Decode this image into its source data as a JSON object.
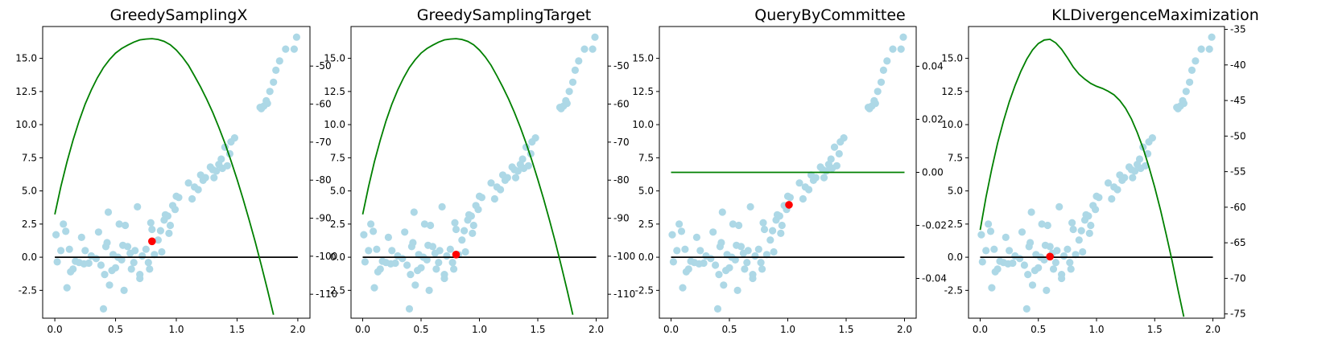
{
  "chart_data": [
    {
      "type": "scatter",
      "title": "GreedySamplingX",
      "xlim": [
        -0.1,
        2.1
      ],
      "ylim": [
        -4.6,
        17.4
      ],
      "xticks": [
        "0.0",
        "0.5",
        "1.0",
        "1.5",
        "2.0"
      ],
      "yticks_left": [
        "-2.5",
        "0.0",
        "2.5",
        "5.0",
        "7.5",
        "10.0",
        "12.5",
        "15.0"
      ],
      "y2lim": [
        -116.3,
        -39.6
      ],
      "yticks_right": [
        "-110",
        "-100",
        "-90",
        "-80",
        "-70",
        "-60",
        "-50"
      ],
      "selected_point": [
        0.8,
        1.2
      ],
      "green_curve": [
        [
          0.0,
          -89
        ],
        [
          0.05,
          -81.7
        ],
        [
          0.1,
          -75.2
        ],
        [
          0.15,
          -69.5
        ],
        [
          0.2,
          -64.4
        ],
        [
          0.25,
          -60.0
        ],
        [
          0.3,
          -56.3
        ],
        [
          0.35,
          -53.1
        ],
        [
          0.4,
          -50.4
        ],
        [
          0.45,
          -48.3
        ],
        [
          0.5,
          -46.6
        ],
        [
          0.55,
          -45.4
        ],
        [
          0.6,
          -44.5
        ],
        [
          0.65,
          -43.7
        ],
        [
          0.7,
          -43.1
        ],
        [
          0.75,
          -42.9
        ],
        [
          0.8,
          -42.8
        ],
        [
          0.85,
          -43.0
        ],
        [
          0.9,
          -43.5
        ],
        [
          0.95,
          -44.4
        ],
        [
          1.0,
          -45.8
        ],
        [
          1.05,
          -47.6
        ],
        [
          1.1,
          -49.8
        ],
        [
          1.15,
          -52.6
        ],
        [
          1.2,
          -55.5
        ],
        [
          1.25,
          -58.7
        ],
        [
          1.3,
          -62.2
        ],
        [
          1.35,
          -66.1
        ],
        [
          1.4,
          -70.3
        ],
        [
          1.45,
          -74.9
        ],
        [
          1.5,
          -79.8
        ],
        [
          1.55,
          -85.0
        ],
        [
          1.6,
          -90.5
        ],
        [
          1.65,
          -96.3
        ],
        [
          1.7,
          -102.4
        ],
        [
          1.75,
          -108.8
        ],
        [
          1.8,
          -115.4
        ]
      ]
    },
    {
      "type": "scatter",
      "title": "GreedySamplingTarget",
      "xlim": [
        -0.1,
        2.1
      ],
      "ylim": [
        -4.6,
        17.4
      ],
      "xticks": [
        "0.0",
        "0.5",
        "1.0",
        "1.5",
        "2.0"
      ],
      "yticks_left": [
        "-2.5",
        "0.0",
        "2.5",
        "5.0",
        "7.5",
        "10.0",
        "12.5",
        "15.0"
      ],
      "y2lim": [
        -116.3,
        -39.6
      ],
      "yticks_right": [
        "-110",
        "-100",
        "-90",
        "-80",
        "-70",
        "-60",
        "-50"
      ],
      "selected_point": [
        0.8,
        0.2
      ],
      "green_curve": [
        [
          0.0,
          -89
        ],
        [
          0.05,
          -81.7
        ],
        [
          0.1,
          -75.2
        ],
        [
          0.15,
          -69.5
        ],
        [
          0.2,
          -64.4
        ],
        [
          0.25,
          -60.0
        ],
        [
          0.3,
          -56.3
        ],
        [
          0.35,
          -53.1
        ],
        [
          0.4,
          -50.4
        ],
        [
          0.45,
          -48.3
        ],
        [
          0.5,
          -46.6
        ],
        [
          0.55,
          -45.4
        ],
        [
          0.6,
          -44.5
        ],
        [
          0.65,
          -43.7
        ],
        [
          0.7,
          -43.1
        ],
        [
          0.75,
          -42.9
        ],
        [
          0.8,
          -42.8
        ],
        [
          0.85,
          -43.0
        ],
        [
          0.9,
          -43.5
        ],
        [
          0.95,
          -44.4
        ],
        [
          1.0,
          -45.8
        ],
        [
          1.05,
          -47.6
        ],
        [
          1.1,
          -49.8
        ],
        [
          1.15,
          -52.6
        ],
        [
          1.2,
          -55.5
        ],
        [
          1.25,
          -58.7
        ],
        [
          1.3,
          -62.2
        ],
        [
          1.35,
          -66.1
        ],
        [
          1.4,
          -70.3
        ],
        [
          1.45,
          -74.9
        ],
        [
          1.5,
          -79.8
        ],
        [
          1.55,
          -85.0
        ],
        [
          1.6,
          -90.5
        ],
        [
          1.65,
          -96.3
        ],
        [
          1.7,
          -102.4
        ],
        [
          1.75,
          -108.8
        ],
        [
          1.8,
          -115.4
        ]
      ]
    },
    {
      "type": "scatter",
      "title": "QueryByCommittee",
      "xlim": [
        -0.1,
        2.1
      ],
      "ylim": [
        -4.6,
        17.4
      ],
      "xticks": [
        "0.0",
        "0.5",
        "1.0",
        "1.5",
        "2.0"
      ],
      "yticks_left": [
        "-2.5",
        "0.0",
        "2.5",
        "5.0",
        "7.5",
        "10.0",
        "12.5",
        "15.0"
      ],
      "y2lim": [
        -0.055,
        0.055
      ],
      "yticks_right": [
        "-0.04",
        "-0.02",
        "0.00",
        "0.02",
        "0.04"
      ],
      "selected_point": [
        1.01,
        3.95
      ],
      "green_curve": [
        [
          0.0,
          0.0
        ],
        [
          2.0,
          0.0
        ]
      ]
    },
    {
      "type": "scatter",
      "title": "KLDivergenceMaximization",
      "xlim": [
        -0.1,
        2.1
      ],
      "ylim": [
        -4.6,
        17.4
      ],
      "xticks": [
        "0.0",
        "0.5",
        "1.0",
        "1.5",
        "2.0"
      ],
      "yticks_left": [
        "-2.5",
        "0.0",
        "2.5",
        "5.0",
        "7.5",
        "10.0",
        "12.5",
        "15.0"
      ],
      "y2lim": [
        -75.6,
        -34.6
      ],
      "yticks_right": [
        "-75",
        "-70",
        "-65",
        "-60",
        "-55",
        "-50",
        "-45",
        "-40",
        "-35"
      ],
      "selected_point": [
        0.6,
        0.05
      ],
      "green_curve": [
        [
          0.0,
          -63.2
        ],
        [
          0.05,
          -58.6
        ],
        [
          0.1,
          -54.6
        ],
        [
          0.15,
          -51.0
        ],
        [
          0.2,
          -47.9
        ],
        [
          0.25,
          -45.2
        ],
        [
          0.3,
          -42.9
        ],
        [
          0.35,
          -40.9
        ],
        [
          0.4,
          -39.2
        ],
        [
          0.45,
          -37.9
        ],
        [
          0.5,
          -37.0
        ],
        [
          0.55,
          -36.5
        ],
        [
          0.6,
          -36.4
        ],
        [
          0.65,
          -36.9
        ],
        [
          0.7,
          -37.8
        ],
        [
          0.75,
          -39.0
        ],
        [
          0.8,
          -40.3
        ],
        [
          0.85,
          -41.3
        ],
        [
          0.9,
          -42.0
        ],
        [
          0.95,
          -42.6
        ],
        [
          1.0,
          -43.0
        ],
        [
          1.05,
          -43.3
        ],
        [
          1.1,
          -43.7
        ],
        [
          1.15,
          -44.2
        ],
        [
          1.2,
          -45.0
        ],
        [
          1.25,
          -46.1
        ],
        [
          1.3,
          -47.6
        ],
        [
          1.35,
          -49.5
        ],
        [
          1.4,
          -51.7
        ],
        [
          1.45,
          -54.3
        ],
        [
          1.5,
          -57.2
        ],
        [
          1.55,
          -60.4
        ],
        [
          1.6,
          -63.9
        ],
        [
          1.65,
          -67.6
        ],
        [
          1.7,
          -71.6
        ],
        [
          1.75,
          -75.4
        ]
      ]
    }
  ],
  "shared_scatter": [
    [
      0.01,
      1.7
    ],
    [
      0.02,
      -0.35
    ],
    [
      0.05,
      0.5
    ],
    [
      0.07,
      2.5
    ],
    [
      0.09,
      1.95
    ],
    [
      0.1,
      -2.3
    ],
    [
      0.12,
      0.6
    ],
    [
      0.13,
      -1.1
    ],
    [
      0.15,
      -0.9
    ],
    [
      0.17,
      -0.3
    ],
    [
      0.2,
      -0.4
    ],
    [
      0.22,
      1.5
    ],
    [
      0.24,
      -0.5
    ],
    [
      0.25,
      0.5
    ],
    [
      0.28,
      -0.45
    ],
    [
      0.3,
      0.1
    ],
    [
      0.34,
      -0.1
    ],
    [
      0.36,
      1.9
    ],
    [
      0.38,
      -0.6
    ],
    [
      0.4,
      -3.9
    ],
    [
      0.41,
      -1.3
    ],
    [
      0.42,
      0.8
    ],
    [
      0.43,
      1.1
    ],
    [
      0.44,
      3.4
    ],
    [
      0.45,
      -2.1
    ],
    [
      0.47,
      -1.0
    ],
    [
      0.48,
      0.2
    ],
    [
      0.5,
      -0.8
    ],
    [
      0.52,
      0.0
    ],
    [
      0.53,
      2.5
    ],
    [
      0.55,
      -0.2
    ],
    [
      0.56,
      0.9
    ],
    [
      0.57,
      -2.5
    ],
    [
      0.58,
      2.4
    ],
    [
      0.6,
      0.8
    ],
    [
      0.62,
      0.3
    ],
    [
      0.63,
      -0.9
    ],
    [
      0.65,
      -0.4
    ],
    [
      0.66,
      0.5
    ],
    [
      0.68,
      3.8
    ],
    [
      0.7,
      -1.3
    ],
    [
      0.7,
      -1.6
    ],
    [
      0.72,
      0.1
    ],
    [
      0.75,
      0.6
    ],
    [
      0.77,
      -0.4
    ],
    [
      0.78,
      -0.9
    ],
    [
      0.79,
      2.6
    ],
    [
      0.8,
      2.1
    ],
    [
      0.82,
      0.2
    ],
    [
      0.85,
      1.3
    ],
    [
      0.87,
      2.0
    ],
    [
      0.88,
      0.4
    ],
    [
      0.9,
      2.8
    ],
    [
      0.91,
      3.2
    ],
    [
      0.93,
      3.1
    ],
    [
      0.94,
      1.8
    ],
    [
      0.95,
      2.4
    ],
    [
      0.97,
      3.9
    ],
    [
      0.99,
      3.6
    ],
    [
      1.0,
      4.6
    ],
    [
      1.02,
      4.5
    ],
    [
      1.1,
      5.6
    ],
    [
      1.13,
      4.4
    ],
    [
      1.15,
      5.3
    ],
    [
      1.18,
      5.1
    ],
    [
      1.2,
      6.2
    ],
    [
      1.22,
      5.8
    ],
    [
      1.24,
      6.0
    ],
    [
      1.28,
      6.8
    ],
    [
      1.3,
      6.6
    ],
    [
      1.31,
      6.0
    ],
    [
      1.33,
      6.5
    ],
    [
      1.35,
      7.0
    ],
    [
      1.37,
      7.4
    ],
    [
      1.38,
      6.7
    ],
    [
      1.4,
      8.3
    ],
    [
      1.42,
      6.9
    ],
    [
      1.44,
      7.8
    ],
    [
      1.45,
      8.7
    ],
    [
      1.48,
      9.0
    ],
    [
      1.69,
      11.3
    ],
    [
      1.7,
      11.2
    ],
    [
      1.72,
      11.4
    ],
    [
      1.74,
      11.8
    ],
    [
      1.75,
      11.6
    ],
    [
      1.77,
      12.5
    ],
    [
      1.8,
      13.2
    ],
    [
      1.82,
      14.1
    ],
    [
      1.85,
      14.8
    ],
    [
      1.9,
      15.7
    ],
    [
      1.97,
      15.7
    ],
    [
      1.99,
      16.6
    ]
  ],
  "colors": {
    "scatter": "#add8e6",
    "selected": "#ff0000",
    "curve": "#008000",
    "baseline": "#000000",
    "axes": "#000000"
  }
}
